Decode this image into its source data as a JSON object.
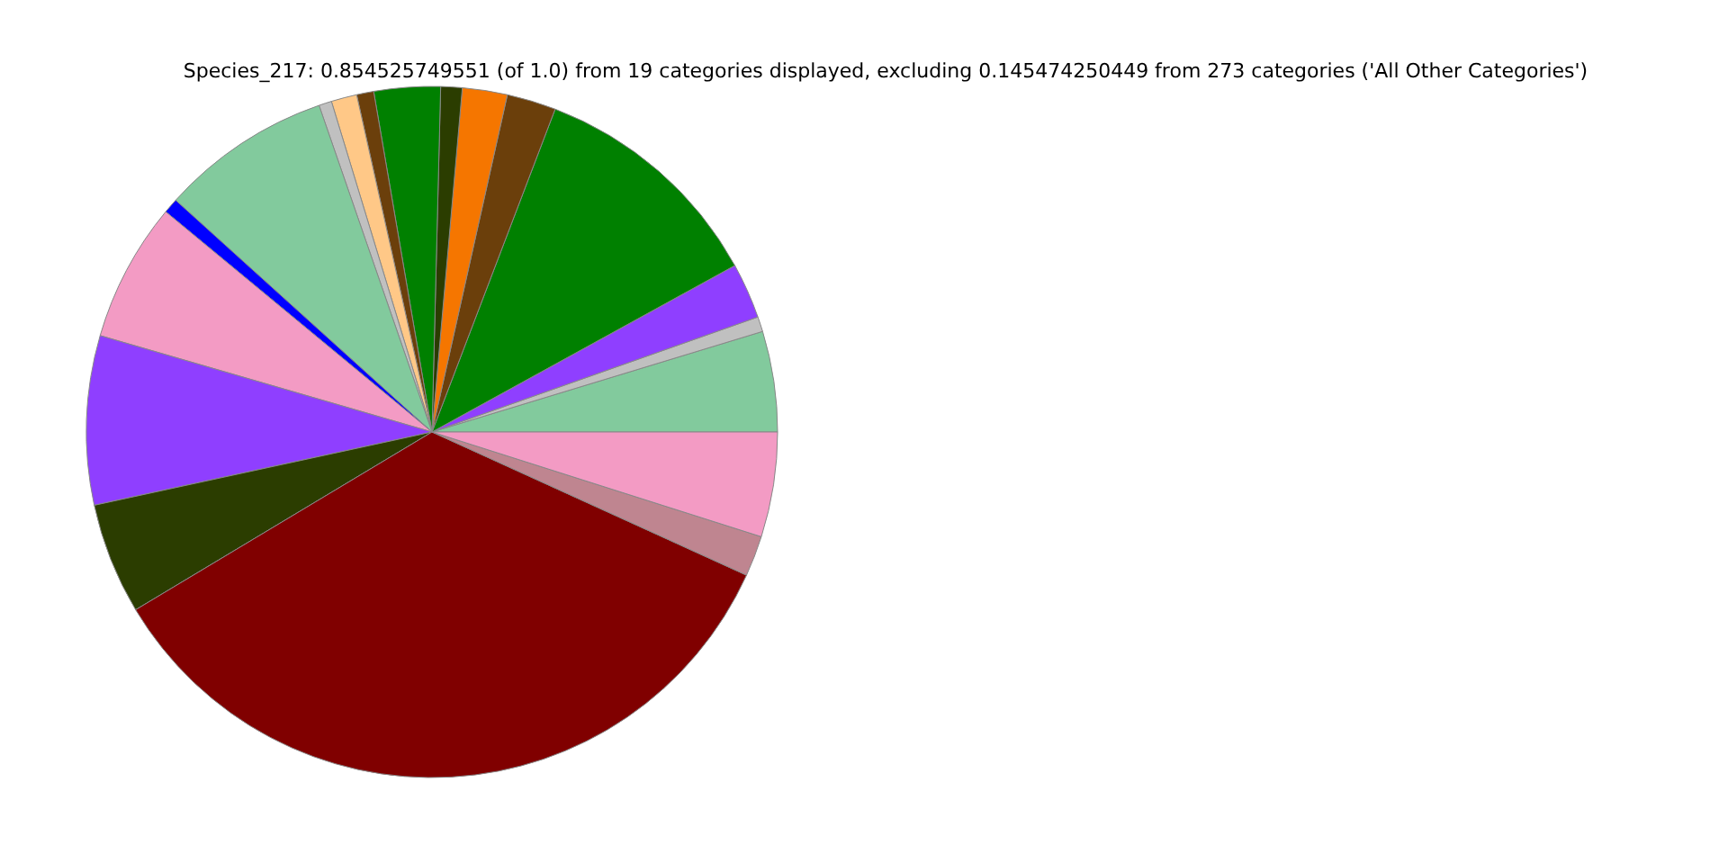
{
  "chart_data": {
    "type": "pie",
    "title": "Species_217: 0.854525749551 (of 1.0) from 19 categories displayed, excluding 0.145474250449 from 273 categories ('All Other Categories')",
    "categories": [
      null,
      null,
      null,
      null,
      null,
      null,
      null,
      null,
      null,
      null,
      null,
      null,
      null,
      null,
      null,
      null,
      null,
      null,
      null
    ],
    "values": [
      4.7,
      0.7,
      2.6,
      11.2,
      2.3,
      2.1,
      1.0,
      3.1,
      0.8,
      1.2,
      0.6,
      8.0,
      0.7,
      6.5,
      7.9,
      5.2,
      34.6,
      1.9,
      4.9
    ],
    "colors": [
      "#82ca9d",
      "#c0c0c0",
      "#8f3fff",
      "#008000",
      "#6b3f0b",
      "#f57600",
      "#2b3d00",
      "#008000",
      "#6b3f0b",
      "#ffc887",
      "#c0c0c0",
      "#82ca9d",
      "#0000ff",
      "#f39bc4",
      "#8f3fff",
      "#2b3d00",
      "#800000",
      "#bf8590",
      "#f39bc4"
    ]
  }
}
